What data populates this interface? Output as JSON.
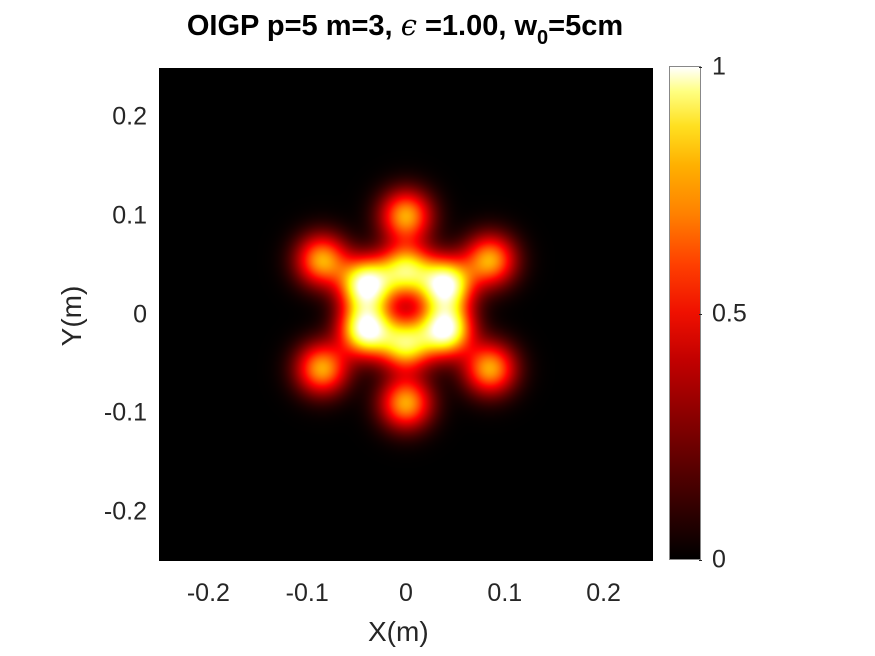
{
  "chart_data": {
    "type": "heatmap",
    "title": {
      "prefix": "OIGP p=5 m=3, ",
      "epsilon_symbol": "ϵ",
      "middle": " =1.00, w",
      "subscript": "0",
      "suffix": "=5cm"
    },
    "xlabel": "X(m)",
    "ylabel": "Y(m)",
    "xlim": [
      -0.25,
      0.25
    ],
    "ylim": [
      -0.25,
      0.25
    ],
    "x_ticks": [
      "-0.2",
      "-0.1",
      "0",
      "0.1",
      "0.2"
    ],
    "y_ticks": [
      "0.2",
      "0.1",
      "0",
      "-0.1",
      "-0.2"
    ],
    "colorbar": {
      "min": 0,
      "max": 1,
      "ticks": [
        "1",
        "0.5",
        "0"
      ]
    },
    "colormap": "hot",
    "peaks": [
      {
        "x": -0.04,
        "y": 0.03,
        "v": 1.0
      },
      {
        "x": 0.04,
        "y": 0.03,
        "v": 1.0
      },
      {
        "x": -0.04,
        "y": -0.015,
        "v": 1.0
      },
      {
        "x": 0.04,
        "y": -0.015,
        "v": 1.0
      },
      {
        "x": 0.0,
        "y": 0.045,
        "v": 0.75
      },
      {
        "x": 0.0,
        "y": -0.03,
        "v": 0.75
      },
      {
        "x": 0.0,
        "y": 0.1,
        "v": 0.62
      },
      {
        "x": 0.0,
        "y": -0.09,
        "v": 0.62
      },
      {
        "x": -0.085,
        "y": 0.055,
        "v": 0.62
      },
      {
        "x": 0.085,
        "y": 0.055,
        "v": 0.62
      },
      {
        "x": -0.085,
        "y": -0.055,
        "v": 0.62
      },
      {
        "x": 0.085,
        "y": -0.055,
        "v": 0.62
      }
    ]
  }
}
